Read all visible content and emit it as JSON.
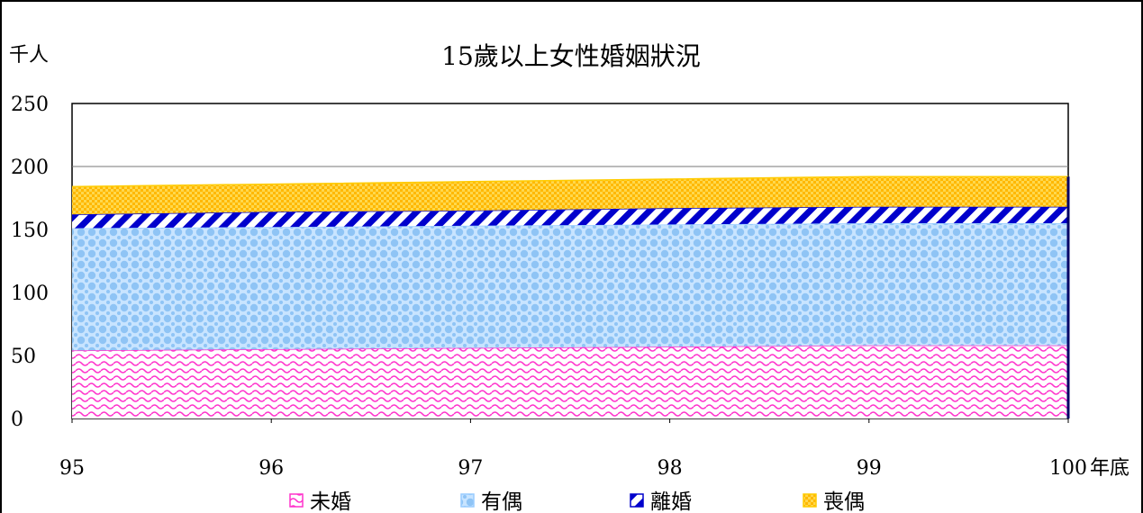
{
  "chart_data": {
    "type": "area",
    "stacked": true,
    "title": "15歲以上女性婚姻狀況",
    "ylabel": "千人",
    "xlabel": "年底",
    "x": [
      "95",
      "96",
      "97",
      "98",
      "99",
      "100"
    ],
    "ylim": [
      0,
      250
    ],
    "yticks": [
      "0",
      "50",
      "100",
      "150",
      "200",
      "250"
    ],
    "grid": {
      "y_major": true,
      "only_at": 200
    },
    "legend_position": "bottom",
    "series": [
      {
        "name": "未婚",
        "values": [
          54,
          55,
          56,
          57,
          58,
          58
        ],
        "color": "#ff33cc",
        "pattern": "wave"
      },
      {
        "name": "有偶",
        "values": [
          97,
          97,
          97,
          97,
          97,
          97
        ],
        "color": "#99ccff",
        "pattern": "dots"
      },
      {
        "name": "離婚",
        "values": [
          11,
          12,
          12,
          13,
          13,
          13
        ],
        "color": "#0000cc",
        "pattern": "diagonal"
      },
      {
        "name": "喪偶",
        "values": [
          22,
          22,
          23,
          23,
          24,
          24
        ],
        "color": "#ffcc00",
        "pattern": "checker"
      }
    ]
  }
}
